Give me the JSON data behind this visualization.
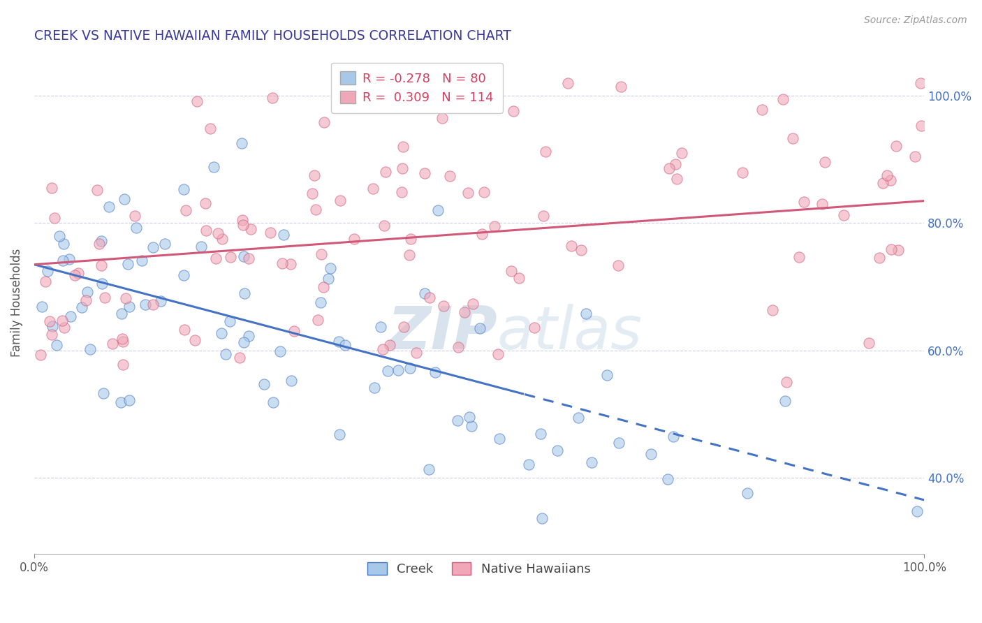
{
  "title": "CREEK VS NATIVE HAWAIIAN FAMILY HOUSEHOLDS CORRELATION CHART",
  "source_text": "Source: ZipAtlas.com",
  "ylabel": "Family Households",
  "creek_R": -0.278,
  "creek_N": 80,
  "hawaiian_R": 0.309,
  "hawaiian_N": 114,
  "xlim": [
    0.0,
    1.0
  ],
  "ylim": [
    0.28,
    1.07
  ],
  "yticks": [
    0.4,
    0.6,
    0.8,
    1.0
  ],
  "ytick_labels": [
    "40.0%",
    "60.0%",
    "80.0%",
    "100.0%"
  ],
  "xticks": [
    0.0,
    1.0
  ],
  "xtick_labels": [
    "0.0%",
    "100.0%"
  ],
  "creek_color": "#a8c8e8",
  "hawaiian_color": "#f0a8b8",
  "creek_line_color": "#4472c4",
  "hawaiian_line_color": "#d05878",
  "title_color": "#3a3a9a",
  "legend_r_color": "#d04060",
  "legend_n_color": "#3060c0",
  "right_axis_color": "#4472c4",
  "grid_color": "#c8c8e8",
  "background_color": "#ffffff",
  "watermark_color": "#c8d8e8",
  "creek_line_start_x": 0.0,
  "creek_line_solid_end_x": 0.55,
  "creek_line_end_x": 1.0,
  "creek_line_start_y": 0.735,
  "creek_line_end_y": 0.365,
  "hawaiian_line_start_x": 0.0,
  "hawaiian_line_end_x": 1.0,
  "hawaiian_line_start_y": 0.735,
  "hawaiian_line_end_y": 0.835
}
